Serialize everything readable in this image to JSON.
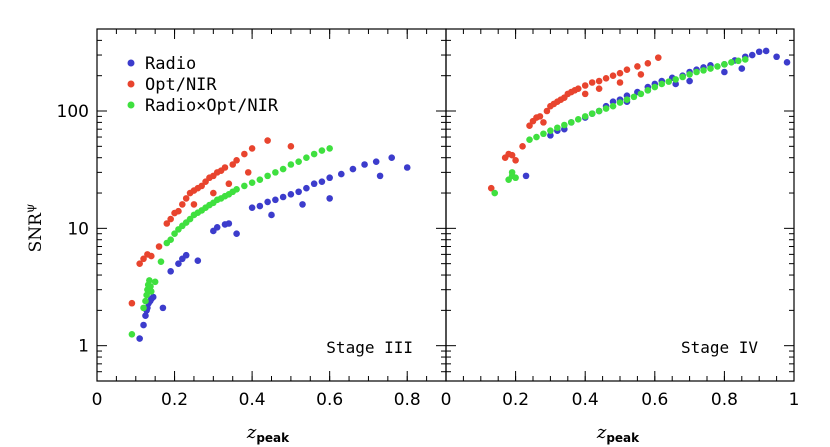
{
  "chart_data": [
    {
      "panel": "left",
      "type": "scatter",
      "title": "Stage III",
      "xlabel": "z",
      "xlabel_sub": "peak",
      "ylabel": "SNR",
      "ylabel_sup": "ψ",
      "xlim": [
        0,
        0.9
      ],
      "ylim": [
        0.5,
        500
      ],
      "yscale": "log",
      "x_ticks": [
        0,
        0.2,
        0.4,
        0.6,
        0.8
      ],
      "x_tick_labels": [
        "0",
        "0.2",
        "0.4",
        "0.6",
        "0.8"
      ],
      "y_ticks": [
        1,
        10,
        100
      ],
      "y_tick_labels": [
        "1",
        "10",
        "100"
      ],
      "series": [
        {
          "name": "Radio",
          "color": "#3c3ccc",
          "points": [
            [
              0.11,
              1.15
            ],
            [
              0.12,
              1.5
            ],
            [
              0.125,
              1.8
            ],
            [
              0.128,
              2.0
            ],
            [
              0.13,
              2.1
            ],
            [
              0.133,
              2.3
            ],
            [
              0.137,
              2.4
            ],
            [
              0.14,
              2.5
            ],
            [
              0.145,
              2.6
            ],
            [
              0.17,
              2.1
            ],
            [
              0.19,
              4.3
            ],
            [
              0.21,
              5.0
            ],
            [
              0.22,
              5.5
            ],
            [
              0.23,
              5.9
            ],
            [
              0.26,
              5.3
            ],
            [
              0.3,
              9.5
            ],
            [
              0.31,
              10.2
            ],
            [
              0.33,
              10.8
            ],
            [
              0.34,
              11.0
            ],
            [
              0.36,
              9.0
            ],
            [
              0.4,
              15
            ],
            [
              0.42,
              15.5
            ],
            [
              0.44,
              16.8
            ],
            [
              0.45,
              13
            ],
            [
              0.46,
              17.5
            ],
            [
              0.48,
              18.5
            ],
            [
              0.5,
              19.5
            ],
            [
              0.52,
              20.5
            ],
            [
              0.53,
              16
            ],
            [
              0.54,
              22
            ],
            [
              0.56,
              24
            ],
            [
              0.58,
              25
            ],
            [
              0.6,
              27
            ],
            [
              0.6,
              18
            ],
            [
              0.63,
              29
            ],
            [
              0.66,
              32
            ],
            [
              0.69,
              35
            ],
            [
              0.72,
              37
            ],
            [
              0.73,
              28
            ],
            [
              0.76,
              40
            ],
            [
              0.8,
              33
            ]
          ]
        },
        {
          "name": "Opt/NIR",
          "color": "#e8442e",
          "points": [
            [
              0.09,
              2.3
            ],
            [
              0.11,
              5.0
            ],
            [
              0.12,
              5.5
            ],
            [
              0.13,
              6.0
            ],
            [
              0.14,
              5.8
            ],
            [
              0.16,
              7.0
            ],
            [
              0.18,
              11
            ],
            [
              0.19,
              12
            ],
            [
              0.2,
              13.5
            ],
            [
              0.21,
              14
            ],
            [
              0.22,
              16
            ],
            [
              0.23,
              18
            ],
            [
              0.24,
              20
            ],
            [
              0.25,
              21
            ],
            [
              0.26,
              22
            ],
            [
              0.27,
              23
            ],
            [
              0.28,
              25
            ],
            [
              0.29,
              27
            ],
            [
              0.3,
              28
            ],
            [
              0.31,
              30
            ],
            [
              0.32,
              31
            ],
            [
              0.33,
              33
            ],
            [
              0.35,
              35
            ],
            [
              0.36,
              38
            ],
            [
              0.38,
              43
            ],
            [
              0.4,
              48
            ],
            [
              0.44,
              56
            ],
            [
              0.5,
              50
            ],
            [
              0.25,
              16
            ],
            [
              0.3,
              20
            ],
            [
              0.34,
              24
            ],
            [
              0.39,
              30
            ]
          ]
        },
        {
          "name": "Radio×Opt/NIR",
          "color": "#3fe03f",
          "points": [
            [
              0.09,
              1.25
            ],
            [
              0.12,
              2.1
            ],
            [
              0.125,
              2.4
            ],
            [
              0.128,
              2.7
            ],
            [
              0.13,
              3.0
            ],
            [
              0.132,
              3.3
            ],
            [
              0.135,
              3.6
            ],
            [
              0.138,
              3.2
            ],
            [
              0.14,
              2.9
            ],
            [
              0.15,
              3.5
            ],
            [
              0.165,
              5.2
            ],
            [
              0.18,
              7.5
            ],
            [
              0.19,
              8.0
            ],
            [
              0.2,
              9.0
            ],
            [
              0.21,
              9.8
            ],
            [
              0.22,
              10.5
            ],
            [
              0.23,
              11.2
            ],
            [
              0.24,
              12.0
            ],
            [
              0.25,
              13.0
            ],
            [
              0.26,
              13.6
            ],
            [
              0.27,
              14.2
            ],
            [
              0.28,
              15.0
            ],
            [
              0.29,
              15.8
            ],
            [
              0.3,
              16.5
            ],
            [
              0.31,
              17.5
            ],
            [
              0.32,
              18.0
            ],
            [
              0.33,
              18.8
            ],
            [
              0.34,
              19.5
            ],
            [
              0.35,
              20.5
            ],
            [
              0.36,
              21.5
            ],
            [
              0.38,
              23
            ],
            [
              0.4,
              24.5
            ],
            [
              0.42,
              26
            ],
            [
              0.44,
              28
            ],
            [
              0.46,
              30
            ],
            [
              0.48,
              32
            ],
            [
              0.5,
              35
            ],
            [
              0.52,
              37
            ],
            [
              0.54,
              40
            ],
            [
              0.56,
              43
            ],
            [
              0.58,
              46
            ],
            [
              0.6,
              48
            ]
          ]
        }
      ]
    },
    {
      "panel": "right",
      "type": "scatter",
      "title": "Stage IV",
      "xlabel": "z",
      "xlabel_sub": "peak",
      "xlim": [
        0,
        1.0
      ],
      "ylim": [
        0.5,
        500
      ],
      "yscale": "log",
      "x_ticks": [
        0,
        0.2,
        0.4,
        0.6,
        0.8,
        1.0
      ],
      "x_tick_labels": [
        "0",
        "0.2",
        "0.4",
        "0.6",
        "0.8",
        "1"
      ],
      "series": [
        {
          "name": "Radio",
          "color": "#3c3ccc",
          "points": [
            [
              0.23,
              28
            ],
            [
              0.3,
              62
            ],
            [
              0.32,
              68
            ],
            [
              0.34,
              70
            ],
            [
              0.36,
              80
            ],
            [
              0.4,
              88
            ],
            [
              0.42,
              95
            ],
            [
              0.44,
              100
            ],
            [
              0.46,
              110
            ],
            [
              0.48,
              120
            ],
            [
              0.5,
              125
            ],
            [
              0.52,
              135
            ],
            [
              0.55,
              145
            ],
            [
              0.58,
              160
            ],
            [
              0.6,
              170
            ],
            [
              0.62,
              180
            ],
            [
              0.65,
              192
            ],
            [
              0.68,
              200
            ],
            [
              0.7,
              215
            ],
            [
              0.72,
              225
            ],
            [
              0.74,
              235
            ],
            [
              0.76,
              245
            ],
            [
              0.8,
              250
            ],
            [
              0.83,
              270
            ],
            [
              0.86,
              290
            ],
            [
              0.88,
              300
            ],
            [
              0.9,
              320
            ],
            [
              0.92,
              325
            ],
            [
              0.95,
              290
            ],
            [
              0.98,
              260
            ],
            [
              0.85,
              230
            ],
            [
              0.8,
              215
            ],
            [
              0.7,
              180
            ],
            [
              0.66,
              170
            ],
            [
              0.58,
              150
            ],
            [
              0.52,
              120
            ]
          ]
        },
        {
          "name": "Opt/NIR",
          "color": "#e8442e",
          "points": [
            [
              0.13,
              22
            ],
            [
              0.17,
              40
            ],
            [
              0.18,
              43
            ],
            [
              0.19,
              42
            ],
            [
              0.2,
              38
            ],
            [
              0.22,
              50
            ],
            [
              0.24,
              75
            ],
            [
              0.25,
              82
            ],
            [
              0.26,
              88
            ],
            [
              0.27,
              90
            ],
            [
              0.28,
              80
            ],
            [
              0.29,
              100
            ],
            [
              0.3,
              110
            ],
            [
              0.31,
              115
            ],
            [
              0.32,
              120
            ],
            [
              0.33,
              125
            ],
            [
              0.34,
              130
            ],
            [
              0.35,
              140
            ],
            [
              0.36,
              145
            ],
            [
              0.37,
              150
            ],
            [
              0.38,
              155
            ],
            [
              0.4,
              165
            ],
            [
              0.42,
              175
            ],
            [
              0.44,
              180
            ],
            [
              0.46,
              190
            ],
            [
              0.48,
              200
            ],
            [
              0.5,
              210
            ],
            [
              0.52,
              225
            ],
            [
              0.55,
              240
            ],
            [
              0.58,
              255
            ],
            [
              0.61,
              285
            ],
            [
              0.56,
              205
            ],
            [
              0.5,
              175
            ],
            [
              0.44,
              155
            ],
            [
              0.4,
              140
            ]
          ]
        },
        {
          "name": "Radio×Opt/NIR",
          "color": "#3fe03f",
          "points": [
            [
              0.14,
              20
            ],
            [
              0.18,
              26
            ],
            [
              0.19,
              28
            ],
            [
              0.19,
              30
            ],
            [
              0.2,
              27
            ],
            [
              0.24,
              57
            ],
            [
              0.26,
              60
            ],
            [
              0.28,
              64
            ],
            [
              0.3,
              68
            ],
            [
              0.32,
              72
            ],
            [
              0.34,
              76
            ],
            [
              0.36,
              80
            ],
            [
              0.38,
              85
            ],
            [
              0.4,
              90
            ],
            [
              0.42,
              95
            ],
            [
              0.44,
              100
            ],
            [
              0.46,
              105
            ],
            [
              0.48,
              110
            ],
            [
              0.5,
              118
            ],
            [
              0.52,
              125
            ],
            [
              0.54,
              132
            ],
            [
              0.56,
              140
            ],
            [
              0.58,
              150
            ],
            [
              0.6,
              160
            ],
            [
              0.62,
              170
            ],
            [
              0.64,
              178
            ],
            [
              0.66,
              186
            ],
            [
              0.68,
              195
            ],
            [
              0.7,
              205
            ],
            [
              0.72,
              215
            ],
            [
              0.74,
              222
            ],
            [
              0.76,
              230
            ],
            [
              0.78,
              240
            ],
            [
              0.8,
              250
            ],
            [
              0.82,
              260
            ],
            [
              0.84,
              268
            ],
            [
              0.86,
              275
            ]
          ]
        }
      ]
    }
  ]
}
